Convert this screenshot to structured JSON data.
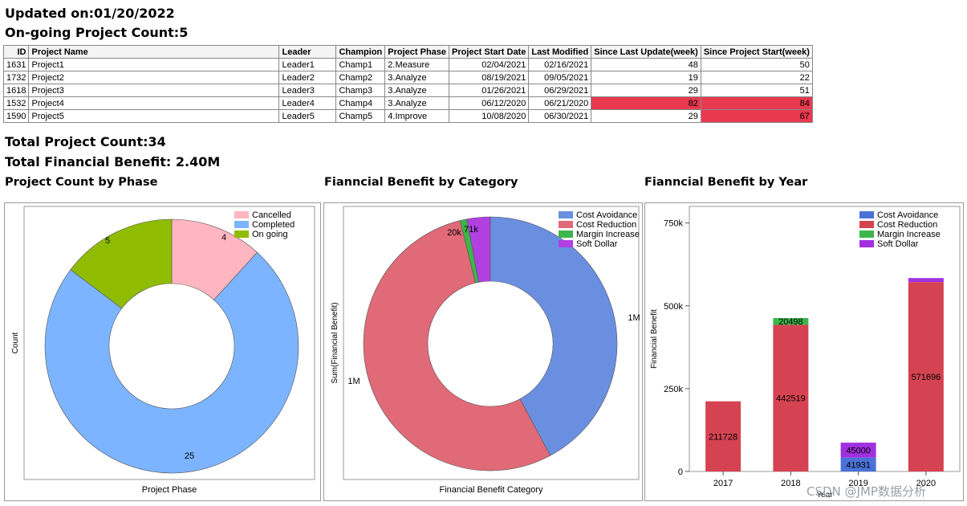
{
  "header": {
    "updated": "Updated on:01/20/2022",
    "ongoing": "On-going Project Count:5"
  },
  "table": {
    "columns": [
      "ID",
      "Project Name",
      "Leader",
      "Champion",
      "Project Phase",
      "Project  Start Date",
      "Last Modified",
      "Since Last Update(week)",
      "Since Project Start(week)"
    ],
    "rows": [
      [
        "1631",
        "Project1",
        "Leader1",
        "Champ1",
        "2.Measure",
        "02/04/2021",
        "02/16/2021",
        "48",
        "50"
      ],
      [
        "1732",
        "Project2",
        "Leader2",
        "Champ2",
        "3.Analyze",
        "08/19/2021",
        "09/05/2021",
        "19",
        "22"
      ],
      [
        "1618",
        "Project3",
        "Leader3",
        "Champ3",
        "3.Analyze",
        "01/26/2021",
        "06/29/2021",
        "29",
        "51"
      ],
      [
        "1532",
        "Project4",
        "Leader4",
        "Champ4",
        "3.Analyze",
        "06/12/2020",
        "06/21/2020",
        "82",
        "84"
      ],
      [
        "1590",
        "Project5",
        "Leader5",
        "Champ5",
        "4.Improve",
        "10/08/2020",
        "06/30/2021",
        "29",
        "67"
      ]
    ],
    "highlight_color": "#e8394e"
  },
  "summary": {
    "total_count": "Total Project Count:34",
    "total_benefit": "Total Financial Benefit: 2.40M"
  },
  "watermark": "CSDN @JMP数据分析",
  "chart_data": [
    {
      "type": "pie",
      "donut": true,
      "title": "Project Count by Phase",
      "xlabel": "Project Phase",
      "ylabel": "Count",
      "categories": [
        "Cancelled",
        "Completed",
        "On going"
      ],
      "values": [
        4,
        25,
        5
      ],
      "labels": [
        "4",
        "25",
        "5"
      ],
      "colors": [
        "#ffb6c1",
        "#7cb4ff",
        "#8fbc00"
      ],
      "legend": "top-right"
    },
    {
      "type": "pie",
      "donut": true,
      "title": "Fianncial Benefit by Category",
      "xlabel": "Financial Benefit Category",
      "ylabel": "Sum(Financial Benefit)",
      "categories": [
        "Cost Avoidance",
        "Cost Reduction",
        "Margin Increase",
        "Soft Dollar"
      ],
      "values": [
        1007000,
        1290000,
        20498,
        71000
      ],
      "labels": [
        "1M",
        "1M",
        "20k",
        "71k"
      ],
      "colors": [
        "#6a8fe0",
        "#e06a78",
        "#3cb54a",
        "#b040e0"
      ],
      "legend": "top-right"
    },
    {
      "type": "bar",
      "stacked": true,
      "title": "Fianncial Benefit by Year",
      "xlabel": "Year",
      "ylabel": "Financial Benefit",
      "categories": [
        "2017",
        "2018",
        "2019",
        "2020"
      ],
      "series": [
        {
          "name": "Cost Avoidance",
          "color": "#4a72d8",
          "values": [
            0,
            0,
            41931,
            0
          ],
          "labels": [
            "",
            "",
            "41931",
            ""
          ]
        },
        {
          "name": "Cost Reduction",
          "color": "#d54352",
          "values": [
            211728,
            442519,
            0,
            571696
          ],
          "labels": [
            "211728",
            "442519",
            "",
            "571696"
          ]
        },
        {
          "name": "Margin Increase",
          "color": "#3cb54a",
          "values": [
            0,
            20498,
            0,
            0
          ],
          "labels": [
            "",
            "20498",
            "",
            ""
          ]
        },
        {
          "name": "Soft Dollar",
          "color": "#a030e0",
          "values": [
            0,
            0,
            45000,
            12000
          ],
          "labels": [
            "",
            "",
            "45000",
            ""
          ]
        }
      ],
      "ylim": [
        0,
        800000
      ],
      "yticks": [
        0,
        250000,
        500000,
        750000
      ],
      "ytick_labels": [
        "0",
        "250k",
        "500k",
        "750k"
      ],
      "legend": "top-right"
    }
  ]
}
